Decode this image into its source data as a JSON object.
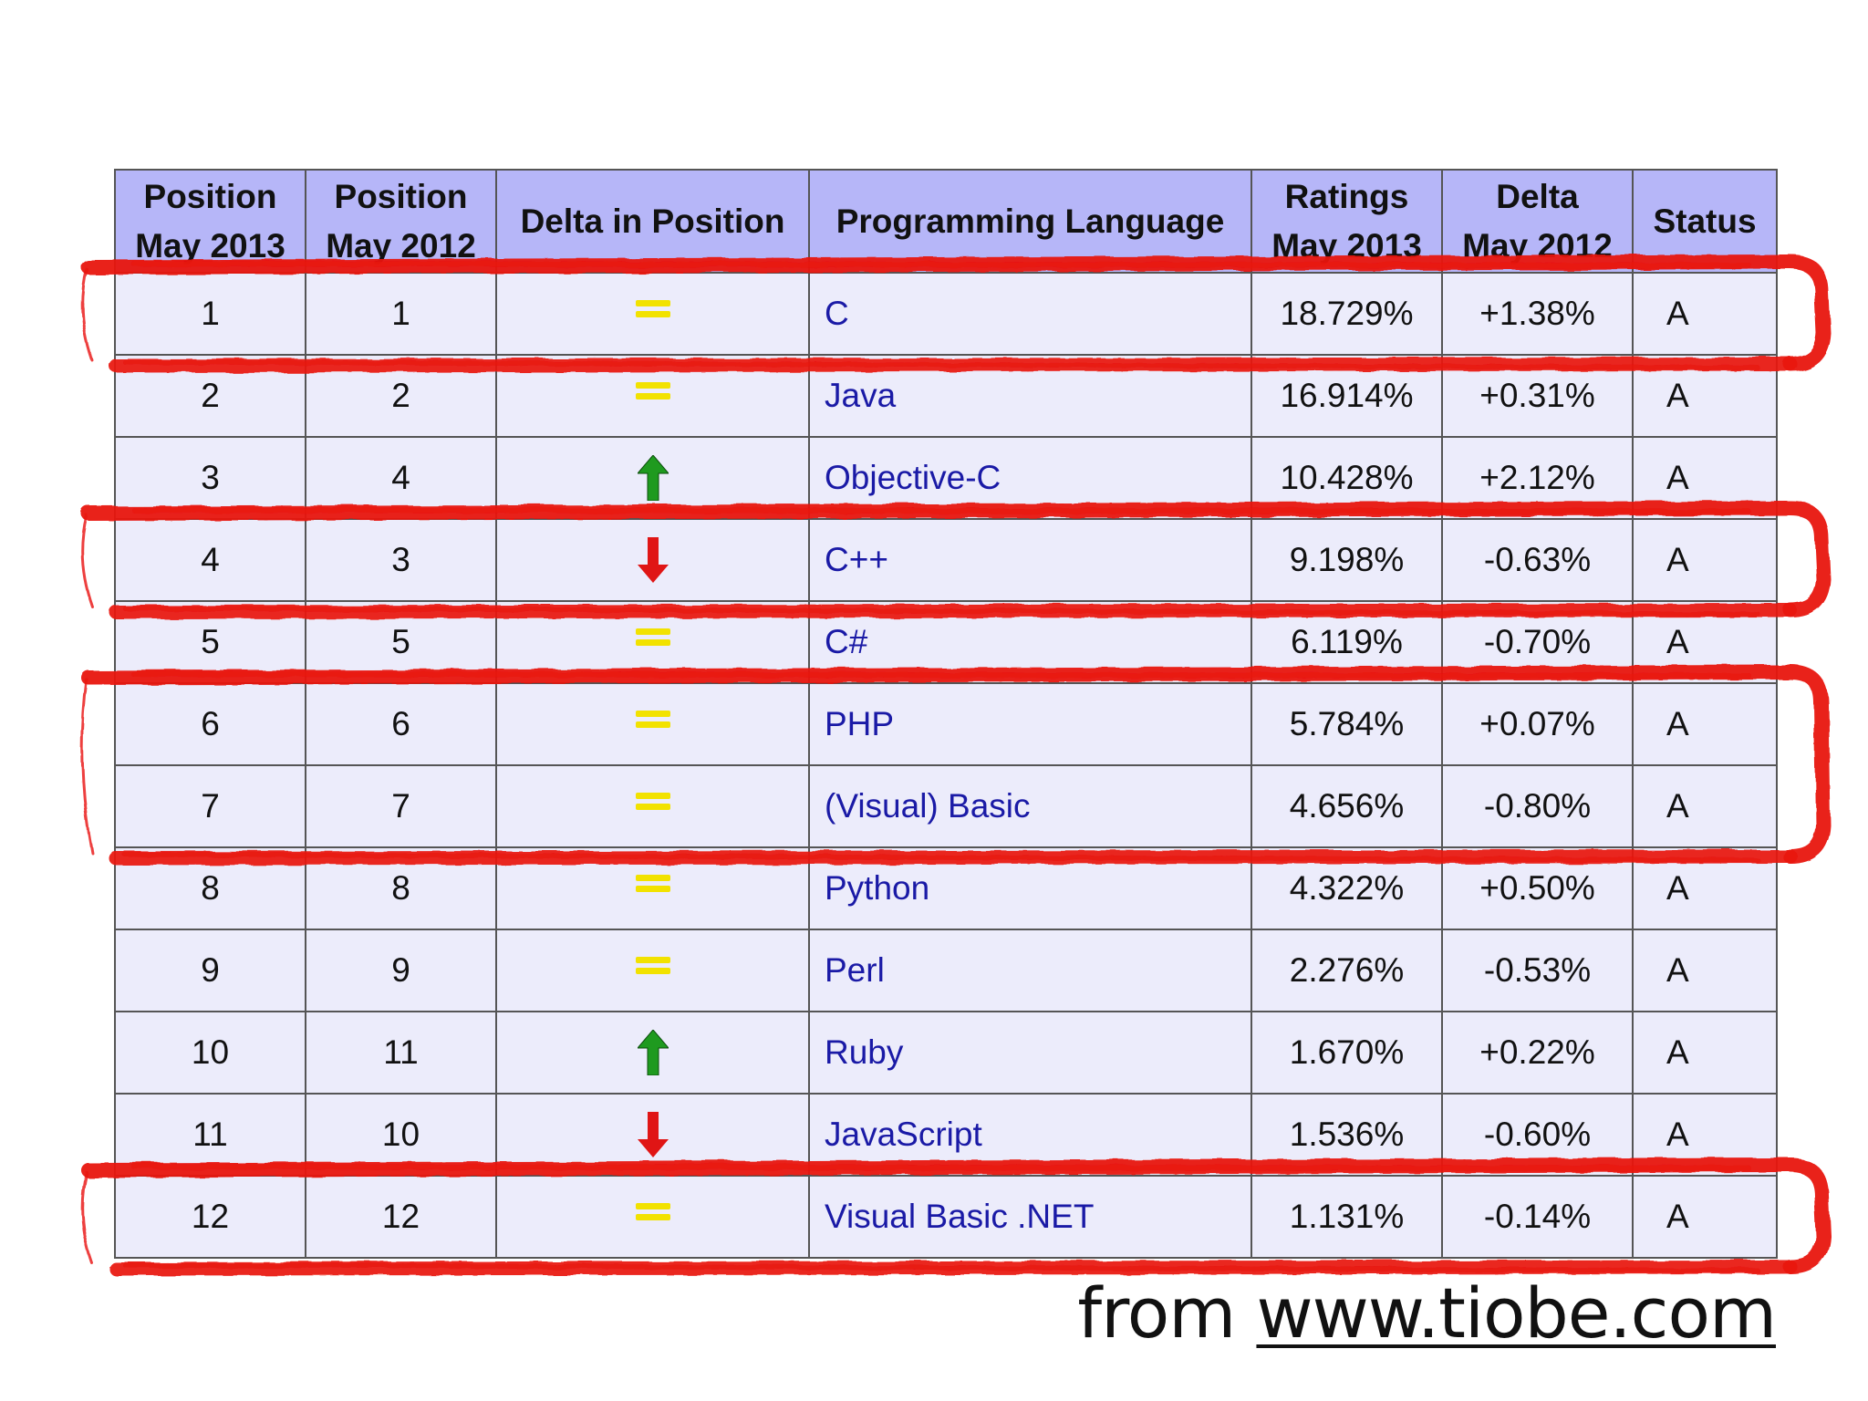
{
  "table": {
    "headers": {
      "position_2013": {
        "line1": "Position",
        "line2": "May 2013"
      },
      "position_2012": {
        "line1": "Position",
        "line2": "May 2012"
      },
      "delta_position": "Delta in Position",
      "language": "Programming Language",
      "ratings": {
        "line1": "Ratings",
        "line2": "May 2013"
      },
      "delta_rating": {
        "line1": "Delta",
        "line2": "May 2012"
      },
      "status": "Status"
    },
    "rows": [
      {
        "pos2013": "1",
        "pos2012": "1",
        "trend": "equal-icon",
        "language": "C",
        "rating": "18.729%",
        "delta": "+1.38%",
        "status": "A",
        "highlighted": true
      },
      {
        "pos2013": "2",
        "pos2012": "2",
        "trend": "equal-icon",
        "language": "Java",
        "rating": "16.914%",
        "delta": "+0.31%",
        "status": "A",
        "highlighted": false
      },
      {
        "pos2013": "3",
        "pos2012": "4",
        "trend": "up-arrow-icon",
        "language": "Objective-C",
        "rating": "10.428%",
        "delta": "+2.12%",
        "status": "A",
        "highlighted": false
      },
      {
        "pos2013": "4",
        "pos2012": "3",
        "trend": "down-arrow-icon",
        "language": "C++",
        "rating": "9.198%",
        "delta": "-0.63%",
        "status": "A",
        "highlighted": true
      },
      {
        "pos2013": "5",
        "pos2012": "5",
        "trend": "equal-icon",
        "language": "C#",
        "rating": "6.119%",
        "delta": "-0.70%",
        "status": "A",
        "highlighted": false
      },
      {
        "pos2013": "6",
        "pos2012": "6",
        "trend": "equal-icon",
        "language": "PHP",
        "rating": "5.784%",
        "delta": "+0.07%",
        "status": "A",
        "highlighted": true
      },
      {
        "pos2013": "7",
        "pos2012": "7",
        "trend": "equal-icon",
        "language": "(Visual) Basic",
        "rating": "4.656%",
        "delta": "-0.80%",
        "status": "A",
        "highlighted": true
      },
      {
        "pos2013": "8",
        "pos2012": "8",
        "trend": "equal-icon",
        "language": "Python",
        "rating": "4.322%",
        "delta": "+0.50%",
        "status": "A",
        "highlighted": false
      },
      {
        "pos2013": "9",
        "pos2012": "9",
        "trend": "equal-icon",
        "language": "Perl",
        "rating": "2.276%",
        "delta": "-0.53%",
        "status": "A",
        "highlighted": false
      },
      {
        "pos2013": "10",
        "pos2012": "11",
        "trend": "up-arrow-icon",
        "language": "Ruby",
        "rating": "1.670%",
        "delta": "+0.22%",
        "status": "A",
        "highlighted": false
      },
      {
        "pos2013": "11",
        "pos2012": "10",
        "trend": "down-arrow-icon",
        "language": "JavaScript",
        "rating": "1.536%",
        "delta": "-0.60%",
        "status": "A",
        "highlighted": false
      },
      {
        "pos2013": "12",
        "pos2012": "12",
        "trend": "equal-icon",
        "language": "Visual Basic .NET",
        "rating": "1.131%",
        "delta": "-0.14%",
        "status": "A",
        "highlighted": true
      }
    ]
  },
  "source": {
    "prefix": "from",
    "link_text": "www.tiobe.com"
  },
  "colors": {
    "header_bg": "#b6b6f8",
    "cell_bg": "#ececfb",
    "language_text": "#1a1aa6",
    "equal_icon": "#f2e200",
    "up_arrow": "#1f9a1f",
    "down_arrow": "#e01515",
    "highlight_stroke": "#e8130c"
  }
}
